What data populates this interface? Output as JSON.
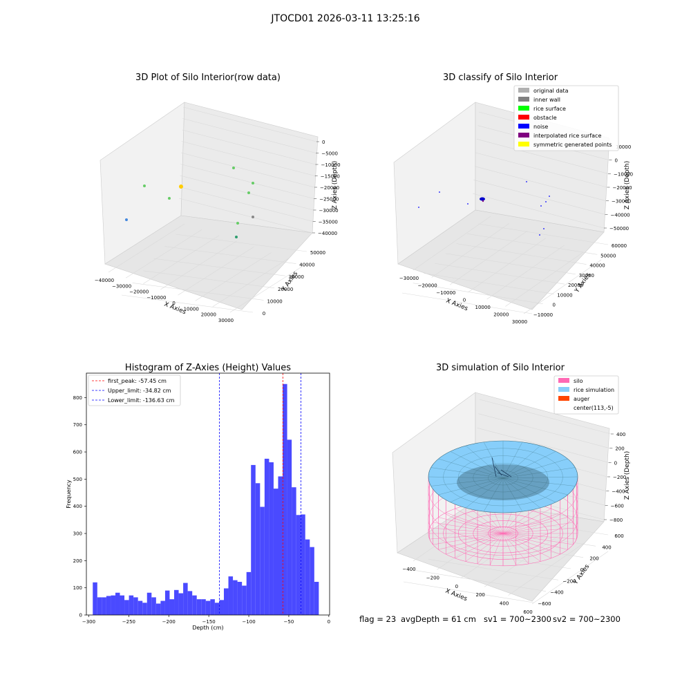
{
  "suptitle": "JTOCD01 2026-03-11 13:25:16",
  "footer": {
    "flag": "flag = 23",
    "avg_depth": "avgDepth = 61 cm",
    "sv1": "sv1 = 700~2300",
    "sv2": "sv2 = 700~2300"
  },
  "colors": {
    "hist_bar": "#4a4aff",
    "peak_line": "#ff0000",
    "limit_line": "#0000ff",
    "pane": "#f2f2f2",
    "grid": "#d9d9d9",
    "silo": "#ff69b4",
    "rice": "#87cefa",
    "auger": "#ff4500"
  },
  "chart_data": [
    {
      "type": "scatter",
      "projection": "3d",
      "title": "3D Plot of Silo Interior(row data)",
      "xlabel": "X Axies",
      "ylabel": "Y Axies",
      "zlabel": "Z Axies (Depth)",
      "x_ticks": [
        "−40000",
        "−30000",
        "−20000",
        "−10000",
        "0",
        "10000",
        "20000",
        "30000"
      ],
      "y_ticks": [
        "0",
        "10000",
        "20000",
        "30000",
        "40000",
        "50000"
      ],
      "z_ticks": [
        "0",
        "−5000",
        "−10000",
        "−15000",
        "−20000",
        "−25000",
        "−30000",
        "−35000",
        "−40000"
      ],
      "points_note": "approximate screen-projected positions",
      "points": [
        {
          "color": "#66cc66"
        },
        {
          "color": "#66cc66"
        },
        {
          "color": "#66cc66"
        },
        {
          "color": "#66cc66"
        },
        {
          "color": "#66cc66"
        },
        {
          "color": "#66cc66"
        },
        {
          "color": "#2e9e6e"
        },
        {
          "color": "#888888"
        },
        {
          "color": "#4488dd"
        },
        {
          "color": "#ffcc00"
        }
      ]
    },
    {
      "type": "scatter",
      "projection": "3d",
      "title": "3D classify of Silo Interior",
      "xlabel": "X Axies",
      "ylabel": "Y Axies",
      "zlabel": "Z Axies (Depth)",
      "x_ticks": [
        "−30000",
        "−20000",
        "−10000",
        "0",
        "10000",
        "20000",
        "30000"
      ],
      "y_ticks": [
        "−10000",
        "0",
        "10000",
        "20000",
        "30000",
        "40000",
        "50000",
        "60000"
      ],
      "z_ticks": [
        "10000",
        "0",
        "−10000",
        "−20000",
        "−30000",
        "−40000",
        "−50000"
      ],
      "legend": [
        {
          "label": "original data",
          "color": "#b0b0b0"
        },
        {
          "label": "inner wall",
          "color": "#808080"
        },
        {
          "label": "rice surface",
          "color": "#00ff00"
        },
        {
          "label": "obstacle",
          "color": "#ff0000"
        },
        {
          "label": "noise",
          "color": "#0000ff"
        },
        {
          "label": "interpolated rice surface",
          "color": "#800080"
        },
        {
          "label": "symmetric generated points",
          "color": "#ffff00"
        }
      ],
      "legend_placement": "upper right"
    },
    {
      "type": "bar",
      "title": "Histogram of Z-Axies (Height) Values",
      "xlabel": "Depth (cm)",
      "ylabel": "Frequency",
      "xlim": [
        -303,
        1
      ],
      "ylim": [
        0,
        890
      ],
      "x_ticks": [
        -300,
        -250,
        -200,
        -150,
        -100,
        -50,
        0
      ],
      "y_ticks": [
        0,
        100,
        200,
        300,
        400,
        500,
        600,
        700,
        800
      ],
      "bin_start": -295,
      "bin_width": 5.65,
      "values": [
        120,
        65,
        65,
        70,
        72,
        82,
        72,
        55,
        72,
        65,
        52,
        45,
        82,
        65,
        42,
        52,
        90,
        58,
        92,
        80,
        118,
        88,
        72,
        58,
        58,
        52,
        58,
        45,
        55,
        98,
        142,
        128,
        122,
        108,
        158,
        552,
        485,
        398,
        575,
        562,
        465,
        510,
        850,
        645,
        470,
        368,
        370,
        278,
        250,
        122
      ],
      "vlines": [
        {
          "label": "first_peak: -57.45 cm",
          "x": -57.45,
          "color": "#ff0000"
        },
        {
          "label": "Upper_limit: -34.82 cm",
          "x": -34.82,
          "color": "#0000ff"
        },
        {
          "label": "Lower_limit: -136.63 cm",
          "x": -136.63,
          "color": "#0000ff"
        }
      ],
      "legend_placement": "upper left"
    },
    {
      "type": "surface",
      "projection": "3d",
      "title": "3D simulation of Silo Interior",
      "xlabel": "X Axies",
      "ylabel": "Y Axies",
      "zlabel": "Z Axies (Depth)",
      "x_ticks": [
        "−400",
        "−200",
        "0",
        "200",
        "400",
        "600"
      ],
      "y_ticks": [
        "−600",
        "−400",
        "−200",
        "0",
        "200",
        "400",
        "600"
      ],
      "z_ticks": [
        "400",
        "200",
        "0",
        "−200",
        "−400",
        "−600",
        "−800"
      ],
      "legend": [
        {
          "label": "silo",
          "color": "#ff69b4"
        },
        {
          "label": "rice simulation",
          "color": "#87cefa"
        },
        {
          "label": "auger",
          "color": "#ff4500"
        },
        {
          "label": "center(113,-5)",
          "color": ""
        }
      ],
      "legend_placement": "upper right"
    }
  ]
}
